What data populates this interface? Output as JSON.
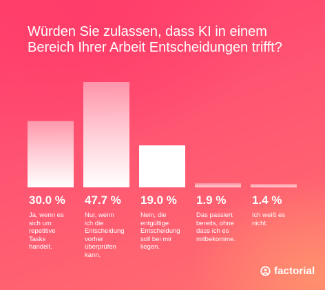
{
  "chart_data": {
    "type": "bar",
    "title": "Würden Sie zulassen, dass KI in einem Bereich Ihrer Arbeit Entscheidungen trifft?",
    "categories": [
      "Ja, wenn es sich um repetitive Tasks handelt.",
      "Nur, wenn ich die Entscheidung vorher überprüfen kann.",
      "Nein, die entgültige Entscheidung soll bei mir liegen.",
      "Das passiert bereits, ohne dass ich es mitbekomme.",
      "Ich weiß es nicht."
    ],
    "category_lines": [
      [
        "Ja, wenn es",
        "sich um",
        "repetitive",
        "Tasks",
        "handelt."
      ],
      [
        "Nur, wenn",
        "ich die",
        "Entscheidung",
        "vorher",
        "überprüfen",
        "kann."
      ],
      [
        "Nein, die",
        "entgültige",
        "Entscheidung",
        "soll bei mir",
        "liegen."
      ],
      [
        "Das passiert",
        "bereits, ohne",
        "dass ich es",
        "mitbekomme."
      ],
      [
        "Ich weiß es",
        "nicht."
      ]
    ],
    "values": [
      30.0,
      47.7,
      19.0,
      1.9,
      1.4
    ],
    "value_labels": [
      "30.0 %",
      "47.7 %",
      "19.0 %",
      "1.9 %",
      "1.4 %"
    ],
    "ylim": [
      0,
      47.7
    ],
    "grid": false,
    "legend": "none"
  },
  "brand": {
    "name": "factorial",
    "icon": "factorial-logo-icon"
  }
}
